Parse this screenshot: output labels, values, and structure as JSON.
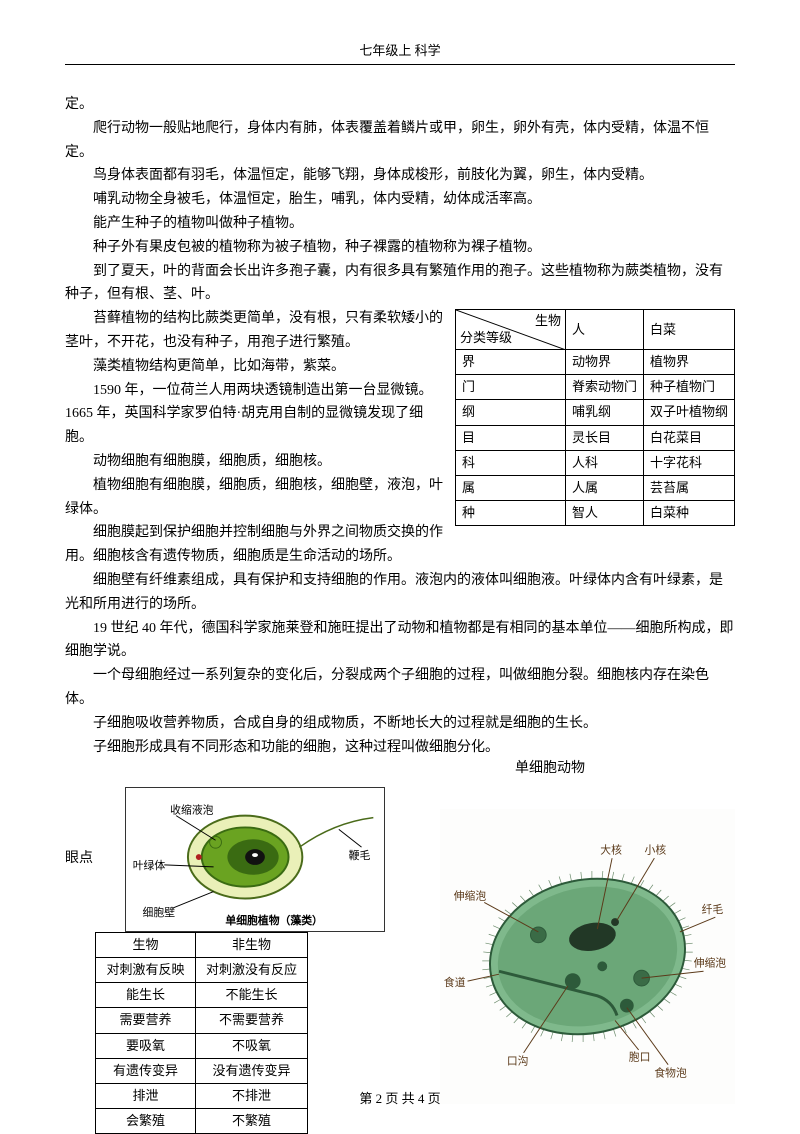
{
  "header": "七年级上 科学",
  "footer": {
    "prefix": "第 ",
    "page": "2",
    "mid": " 页 共 ",
    "total": "4",
    "suffix": " 页"
  },
  "paragraphs": {
    "p0": "定。",
    "p1": "爬行动物一般贴地爬行，身体内有肺，体表覆盖着鳞片或甲，卵生，卵外有壳，体内受精，体温不恒定。",
    "p2": "鸟身体表面都有羽毛，体温恒定，能够飞翔，身体成梭形，前肢化为翼，卵生，体内受精。",
    "p3": "哺乳动物全身被毛，体温恒定，胎生，哺乳，体内受精，幼体成活率高。",
    "p4": "能产生种子的植物叫做种子植物。",
    "p5": "种子外有果皮包被的植物称为被子植物，种子裸露的植物称为裸子植物。",
    "p6": "到了夏天，叶的背面会长出许多孢子囊，内有很多具有繁殖作用的孢子。这些植物称为蕨类植物，没有种子，但有根、茎、叶。",
    "p7": "苔藓植物的结构比蕨类更简单，没有根，只有柔软矮小的茎叶，不开花，也没有种子，用孢子进行繁殖。",
    "p8": "藻类植物结构更简单，比如海带，紫菜。",
    "p9": "1590 年，一位荷兰人用两块透镜制造出第一台显微镜。1665 年，英国科学家罗伯特·胡克用自制的显微镜发现了细胞。",
    "p10": "动物细胞有细胞膜，细胞质，细胞核。",
    "p11": "植物细胞有细胞膜，细胞质，细胞核，细胞壁，液泡，叶绿体。",
    "p12": "细胞膜起到保护细胞并控制细胞与外界之间物质交换的作用。细胞核含有遗传物质，细胞质是生命活动的场所。",
    "p13": "细胞壁有纤维素组成，具有保护和支持细胞的作用。液泡内的液体叫细胞液。叶绿体内含有叶绿素，是光和所用进行的场所。",
    "p14": "19 世纪 40 年代，德国科学家施莱登和施旺提出了动物和植物都是有相同的基本单位——细胞所构成，即细胞学说。",
    "p15": "一个母细胞经过一系列复杂的变化后，分裂成两个子细胞的过程，叫做细胞分裂。细胞核内存在染色体。",
    "p16": "子细胞吸收营养物质，合成自身的组成物质，不断地长大的过程就是细胞的生长。",
    "p17": "子细胞形成具有不同形态和功能的细胞，这种过程叫做细胞分化。",
    "single_cell": "单细胞动物",
    "eyespot": "眼点"
  },
  "taxonomy": {
    "diag_top": "生物",
    "diag_bot": "分类等级",
    "col_human": "人",
    "col_cabbage": "白菜",
    "rows": [
      {
        "level": "界",
        "human": "动物界",
        "cabbage": "植物界"
      },
      {
        "level": "门",
        "human": "脊索动物门",
        "cabbage": "种子植物门"
      },
      {
        "level": "纲",
        "human": "哺乳纲",
        "cabbage": "双子叶植物纲"
      },
      {
        "level": "目",
        "human": "灵长目",
        "cabbage": "白花菜目"
      },
      {
        "level": "科",
        "human": "人科",
        "cabbage": "十字花科"
      },
      {
        "level": "属",
        "human": "人属",
        "cabbage": "芸苔属"
      },
      {
        "level": "种",
        "human": "智人",
        "cabbage": "白菜种"
      }
    ]
  },
  "compare": {
    "head_left": "生物",
    "head_right": "非生物",
    "rows": [
      {
        "l": "对刺激有反映",
        "r": "对刺激没有反应"
      },
      {
        "l": "能生长",
        "r": "不能生长"
      },
      {
        "l": "需要营养",
        "r": "不需要营养"
      },
      {
        "l": "要吸氧",
        "r": "不吸氧"
      },
      {
        "l": "有遗传变异",
        "r": "没有遗传变异"
      },
      {
        "l": "排泄",
        "r": "不排泄"
      },
      {
        "l": "会繁殖",
        "r": "不繁殖"
      }
    ]
  },
  "algae": {
    "vacuole": "收缩液泡",
    "chloroplast": "叶绿体",
    "cellwall": "细胞壁",
    "flagellum": "鞭毛",
    "caption": "单细胞植物（藻类）"
  },
  "paramecium": {
    "macronucleus": "大核",
    "micronucleus": "小核",
    "contractile": "伸缩泡",
    "ciliate": "纤毛",
    "food_vacuole": "食物泡",
    "oral_groove": "口沟",
    "anal_pore": "胞口",
    "gullet": "食道"
  },
  "colors": {
    "algae_outer": "#eaf0b8",
    "algae_mid": "#6aa321",
    "algae_inner": "#3a6b12",
    "algae_nucleus": "#111",
    "algae_eyespot": "#b02020",
    "para_body": "#5d9b6a",
    "para_body_light": "#7fb98c",
    "para_border": "#2d5a3a",
    "para_label": "#5b3a1a"
  }
}
